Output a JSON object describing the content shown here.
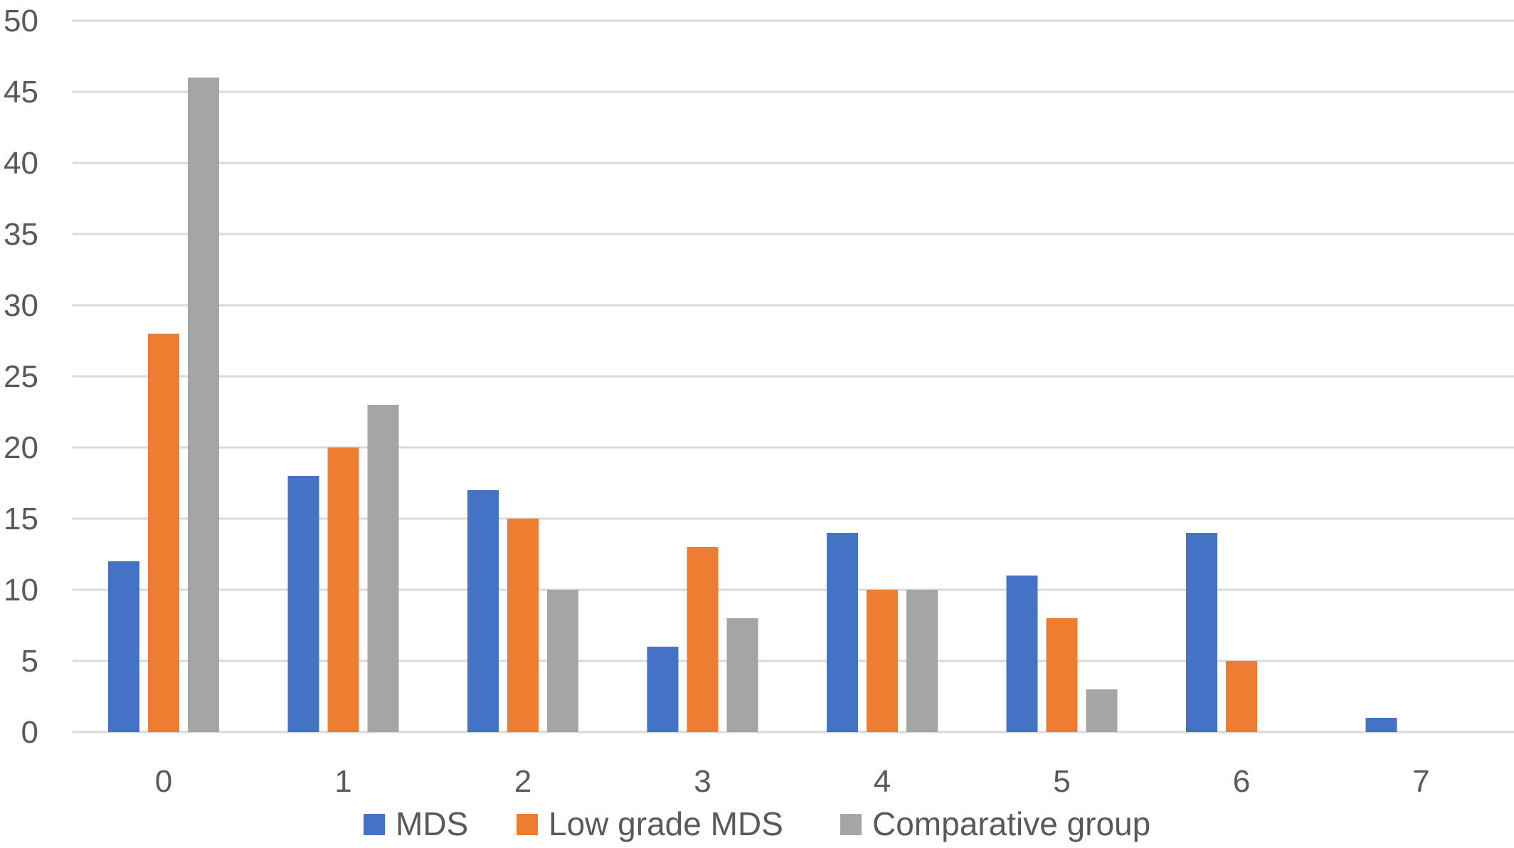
{
  "chart_data": {
    "type": "bar",
    "title": "",
    "xlabel": "",
    "ylabel": "",
    "categories": [
      "0",
      "1",
      "2",
      "3",
      "4",
      "5",
      "6",
      "7"
    ],
    "series": [
      {
        "name": "MDS",
        "color": "#4472C4",
        "values": [
          12,
          18,
          17,
          6,
          14,
          11,
          14,
          1
        ]
      },
      {
        "name": "Low grade MDS",
        "color": "#ED7D31",
        "values": [
          28,
          20,
          15,
          13,
          10,
          8,
          5,
          0
        ]
      },
      {
        "name": "Comparative group",
        "color": "#A5A5A5",
        "values": [
          46,
          23,
          10,
          8,
          10,
          3,
          0,
          0
        ]
      }
    ],
    "ylim": [
      0,
      50
    ],
    "yticks": [
      "0",
      "5",
      "10",
      "15",
      "20",
      "25",
      "30",
      "35",
      "40",
      "45",
      "50"
    ],
    "grid": true,
    "gridline_color": "#D9D9D9",
    "legend_position": "bottom-center"
  }
}
